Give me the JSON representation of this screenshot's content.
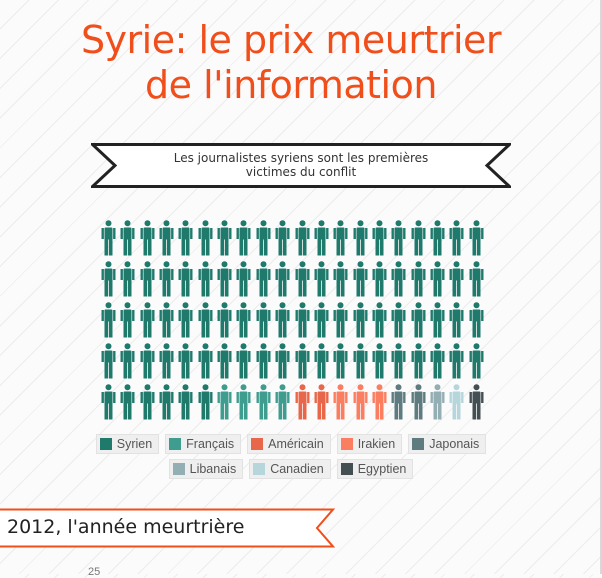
{
  "title": {
    "line1": "Syrie: le prix meurtrier",
    "line2": "de l'information"
  },
  "subtitle_banner": {
    "line1": "Les journalistes syriens sont les premières",
    "line2": "victimes du conflit"
  },
  "section_banner": {
    "label": "2012, l'année meurtrière"
  },
  "next_chart": {
    "first_tick": "25"
  },
  "colors": {
    "title": "#f04e1a",
    "Syrien": "#1f7a6c",
    "Français": "#3f9d90",
    "Américain": "#e8674a",
    "Irakien": "#fb7e60",
    "Japonais": "#5e7b80",
    "Libanais": "#93afb3",
    "Canadien": "#b6d6dc",
    "Egyptien": "#434f53"
  },
  "legend": {
    "row1": [
      "Syrien",
      "Français",
      "Américain",
      "Irakien",
      "Japonais"
    ],
    "row2": [
      "Libanais",
      "Canadien",
      "Egyptien"
    ]
  },
  "chart_data": {
    "type": "pictogram",
    "title": "Les journalistes syriens sont les premières victimes du conflit",
    "unit": "journalist icons",
    "grid": {
      "rows": 5,
      "columns": 20
    },
    "categories": [
      "Syrien",
      "Français",
      "Américain",
      "Irakien",
      "Japonais",
      "Libanais",
      "Canadien",
      "Egyptien"
    ],
    "values": [
      86,
      4,
      2,
      3,
      2,
      1,
      1,
      1
    ],
    "total": 100,
    "legend_position": "bottom"
  }
}
